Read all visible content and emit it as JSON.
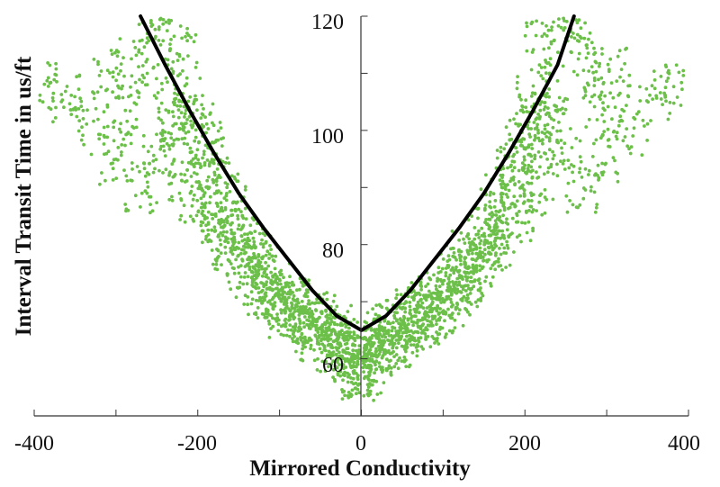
{
  "chart_data": {
    "type": "scatter",
    "title": "",
    "xlabel": "Mirrored Conductivity",
    "ylabel": "Interval Transit Time in us/ft",
    "xlim": [
      -400,
      400
    ],
    "ylim": [
      50,
      120
    ],
    "x_ticks": [
      "-400",
      "-200",
      "0",
      "200",
      "400"
    ],
    "y_ticks": [
      "60",
      "80",
      "100",
      "120"
    ],
    "grid": false,
    "legend": "none",
    "colors": {
      "points": "#6cc04a",
      "curve": "#000000",
      "axis": "#333333"
    },
    "series": [
      {
        "type": "scatter",
        "description_points": "symmetric cloud mirrored about x=0, dense between 0 and ±200",
        "x": [
          -390,
          -360,
          -330,
          -310,
          -300,
          -290,
          -280,
          -270,
          -260,
          -250,
          -240,
          -235,
          -230,
          -225,
          -220,
          -215,
          -210,
          -205,
          -200,
          -195,
          -190,
          -185,
          -180,
          -175,
          -170,
          -165,
          -160,
          -155,
          -150,
          -145,
          -140,
          -135,
          -130,
          -125,
          -120,
          -115,
          -110,
          -105,
          -100,
          -95,
          -90,
          -85,
          -80,
          -75,
          -70,
          -65,
          -60,
          -55,
          -50,
          -45,
          -40,
          -35,
          -30,
          -25,
          -20,
          -15,
          -10,
          -8,
          -6,
          -4,
          390,
          360,
          330,
          310,
          300,
          290,
          280,
          270,
          260,
          250,
          240,
          235,
          230,
          225,
          220,
          215,
          210,
          205,
          200,
          195,
          190,
          185,
          180,
          175,
          170,
          165,
          160,
          155,
          150,
          145,
          140,
          135,
          130,
          125,
          120,
          115,
          110,
          105,
          100,
          95,
          90,
          85,
          80,
          75,
          70,
          65,
          60,
          55,
          50,
          45,
          40,
          35,
          30,
          25,
          20,
          15,
          10,
          8,
          6,
          4
        ],
        "y": [
          108,
          106,
          100,
          110,
          95,
          104,
          112,
          90,
          118,
          96,
          120,
          108,
          102,
          99,
          115,
          92,
          105,
          88,
          101,
          94,
          85,
          97,
          91,
          83,
          88,
          80,
          86,
          79,
          82,
          76,
          80,
          74,
          78,
          72,
          76,
          71,
          74,
          69,
          73,
          68,
          71,
          67,
          70,
          66,
          69,
          65,
          68,
          64,
          67,
          63,
          66,
          62,
          65,
          61,
          64,
          60,
          63,
          58,
          62,
          57,
          108,
          106,
          100,
          110,
          95,
          104,
          112,
          90,
          118,
          96,
          120,
          108,
          102,
          99,
          115,
          92,
          105,
          88,
          101,
          94,
          85,
          97,
          91,
          83,
          88,
          80,
          86,
          79,
          82,
          76,
          80,
          74,
          78,
          72,
          76,
          71,
          74,
          69,
          73,
          68,
          71,
          67,
          70,
          66,
          69,
          65,
          68,
          64,
          67,
          63,
          66,
          62,
          65,
          61,
          64,
          60,
          63,
          58,
          62,
          57
        ]
      },
      {
        "type": "line",
        "description_curve": "fitted parabola, minimum about 65 at x=0",
        "x": [
          -270,
          -240,
          -210,
          -180,
          -150,
          -120,
          -90,
          -60,
          -30,
          0,
          30,
          60,
          90,
          120,
          150,
          180,
          210,
          240,
          260
        ],
        "y": [
          120,
          111.5,
          103.5,
          96,
          89,
          83,
          77.5,
          72,
          67.5,
          65,
          67.5,
          72,
          77.5,
          83,
          89,
          96,
          103.5,
          111.5,
          120
        ]
      }
    ]
  }
}
